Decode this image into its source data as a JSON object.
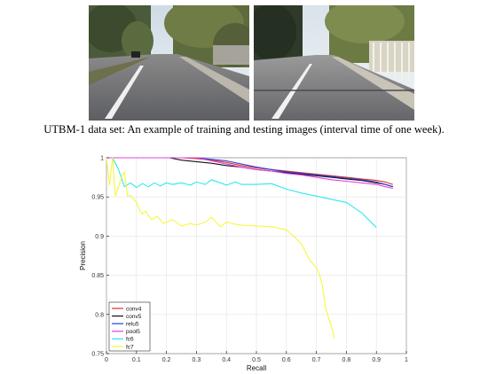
{
  "figure": {
    "caption": "UTBM-1 data set: An example of training and testing images (interval time of one week).",
    "images": [
      {
        "role": "training",
        "description_icon": "road-photo"
      },
      {
        "role": "testing",
        "description_icon": "road-photo"
      }
    ]
  },
  "chart_data": {
    "type": "line",
    "title": "",
    "xlabel": "Recall",
    "ylabel": "Precision",
    "xlim": [
      0,
      1
    ],
    "ylim": [
      0.75,
      1
    ],
    "xticks": [
      "0",
      "0.1",
      "0.2",
      "0.3",
      "0.4",
      "0.5",
      "0.6",
      "0.7",
      "0.8",
      "0.9",
      "1"
    ],
    "yticks": [
      "0.75",
      "0.8",
      "0.85",
      "0.9",
      "0.95",
      "1"
    ],
    "grid": true,
    "legend_position": "bottom-left",
    "series": [
      {
        "name": "conv4",
        "color": "#e0312a",
        "x": [
          0.0,
          0.25,
          0.3,
          0.35,
          0.4,
          0.45,
          0.5,
          0.55,
          0.6,
          0.65,
          0.7,
          0.75,
          0.8,
          0.85,
          0.9,
          0.93,
          0.955
        ],
        "y": [
          1.0,
          1.0,
          0.999,
          0.997,
          0.994,
          0.99,
          0.987,
          0.985,
          0.983,
          0.981,
          0.979,
          0.977,
          0.975,
          0.973,
          0.971,
          0.969,
          0.966
        ]
      },
      {
        "name": "conv5",
        "color": "#111111",
        "x": [
          0.0,
          0.21,
          0.25,
          0.3,
          0.35,
          0.4,
          0.45,
          0.5,
          0.55,
          0.6,
          0.65,
          0.7,
          0.75,
          0.8,
          0.85,
          0.9,
          0.93,
          0.955
        ],
        "y": [
          1.0,
          1.0,
          0.997,
          0.995,
          0.993,
          0.99,
          0.988,
          0.985,
          0.983,
          0.981,
          0.979,
          0.977,
          0.975,
          0.973,
          0.971,
          0.968,
          0.966,
          0.963
        ]
      },
      {
        "name": "relu5",
        "color": "#2b3fd6",
        "x": [
          0.0,
          0.3,
          0.35,
          0.4,
          0.45,
          0.5,
          0.55,
          0.6,
          0.65,
          0.7,
          0.75,
          0.8,
          0.85,
          0.9,
          0.93,
          0.955
        ],
        "y": [
          1.0,
          1.0,
          0.998,
          0.996,
          0.992,
          0.988,
          0.985,
          0.982,
          0.98,
          0.978,
          0.976,
          0.974,
          0.972,
          0.969,
          0.966,
          0.963
        ]
      },
      {
        "name": "pool5",
        "color": "#e040e0",
        "x": [
          0.0,
          0.3,
          0.35,
          0.4,
          0.45,
          0.5,
          0.55,
          0.6,
          0.65,
          0.7,
          0.75,
          0.8,
          0.85,
          0.9,
          0.93,
          0.955
        ],
        "y": [
          1.0,
          1.0,
          0.996,
          0.992,
          0.988,
          0.985,
          0.983,
          0.98,
          0.978,
          0.975,
          0.972,
          0.97,
          0.968,
          0.966,
          0.963,
          0.961
        ]
      },
      {
        "name": "fc6",
        "color": "#2ee8ee",
        "x": [
          0.02,
          0.04,
          0.06,
          0.08,
          0.1,
          0.12,
          0.14,
          0.16,
          0.18,
          0.2,
          0.22,
          0.25,
          0.28,
          0.3,
          0.33,
          0.35,
          0.38,
          0.4,
          0.43,
          0.45,
          0.5,
          0.55,
          0.6,
          0.65,
          0.7,
          0.75,
          0.8,
          0.85,
          0.9
        ],
        "y": [
          1.0,
          0.985,
          0.963,
          0.968,
          0.962,
          0.967,
          0.963,
          0.968,
          0.964,
          0.968,
          0.966,
          0.968,
          0.965,
          0.969,
          0.966,
          0.972,
          0.968,
          0.965,
          0.969,
          0.966,
          0.966,
          0.967,
          0.96,
          0.955,
          0.951,
          0.947,
          0.943,
          0.93,
          0.911
        ]
      },
      {
        "name": "fc7",
        "color": "#f7f73c",
        "x": [
          0.0,
          0.01,
          0.02,
          0.03,
          0.05,
          0.06,
          0.07,
          0.08,
          0.1,
          0.11,
          0.12,
          0.13,
          0.15,
          0.17,
          0.19,
          0.22,
          0.25,
          0.28,
          0.3,
          0.33,
          0.35,
          0.38,
          0.4,
          0.43,
          0.45,
          0.5,
          0.55,
          0.6,
          0.63,
          0.65,
          0.68,
          0.7,
          0.71,
          0.72,
          0.73,
          0.74,
          0.75,
          0.76
        ],
        "y": [
          1.0,
          0.965,
          1.0,
          0.951,
          0.975,
          0.982,
          0.951,
          0.952,
          0.943,
          0.933,
          0.928,
          0.932,
          0.921,
          0.925,
          0.916,
          0.921,
          0.913,
          0.916,
          0.914,
          0.918,
          0.924,
          0.912,
          0.918,
          0.915,
          0.914,
          0.913,
          0.912,
          0.908,
          0.898,
          0.89,
          0.868,
          0.86,
          0.851,
          0.837,
          0.81,
          0.796,
          0.785,
          0.77
        ]
      }
    ]
  }
}
